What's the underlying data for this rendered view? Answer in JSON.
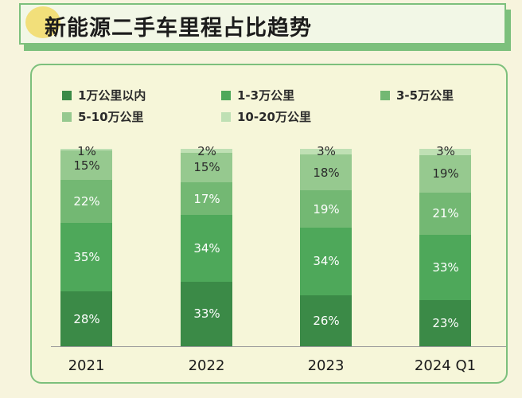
{
  "title": "新能源二手车里程占比趋势",
  "colors": {
    "s1": "#3b8a47",
    "s2": "#4ea85a",
    "s3": "#73b873",
    "s4": "#96c98f",
    "s5": "#bfe0b4"
  },
  "chart_data": {
    "type": "bar",
    "stacked": true,
    "categories": [
      "2021",
      "2022",
      "2023",
      "2024 Q1"
    ],
    "series": [
      {
        "name": "1万公里以内",
        "values": [
          28,
          33,
          26,
          23
        ]
      },
      {
        "name": "1-3万公里",
        "values": [
          35,
          34,
          34,
          33
        ]
      },
      {
        "name": "3-5万公里",
        "values": [
          22,
          17,
          19,
          21
        ]
      },
      {
        "name": "5-10万公里",
        "values": [
          15,
          15,
          18,
          19
        ]
      },
      {
        "name": "10-20万公里",
        "values": [
          1,
          2,
          3,
          3
        ]
      }
    ],
    "labels": [
      [
        "28%",
        "35%",
        "22%",
        "15%",
        "1%"
      ],
      [
        "33%",
        "34%",
        "17%",
        "15%",
        "2%"
      ],
      [
        "26%",
        "34%",
        "19%",
        "18%",
        "3%"
      ],
      [
        "23%",
        "33%",
        "21%",
        "19%",
        "3%"
      ]
    ],
    "ylim": [
      0,
      100
    ],
    "legend_position": "top"
  }
}
